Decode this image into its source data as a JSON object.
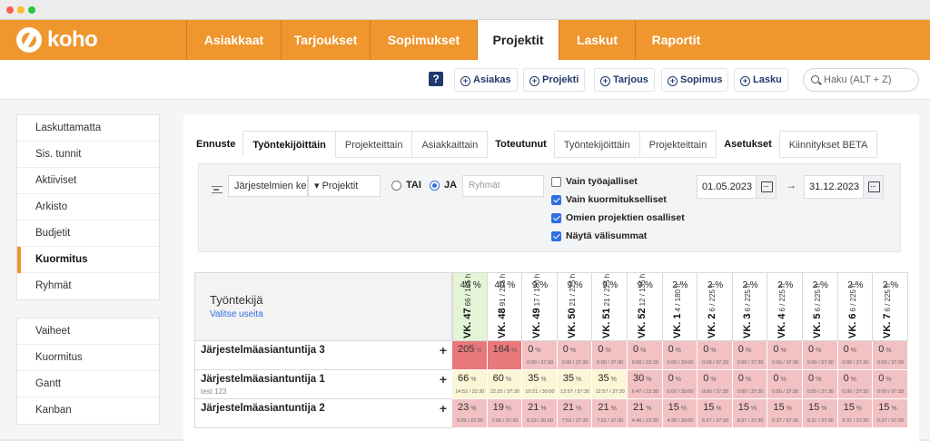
{
  "app": {
    "logo_text": "koho",
    "brand_color": "#f0962e"
  },
  "nav": {
    "tabs": [
      {
        "label": "Asiakkaat"
      },
      {
        "label": "Tarjoukset"
      },
      {
        "label": "Sopimukset"
      },
      {
        "label": "Projektit",
        "active": true
      },
      {
        "label": "Laskut"
      },
      {
        "label": "Raportit"
      }
    ]
  },
  "toolbar": {
    "help_glyph": "?",
    "buttons": [
      {
        "label": "Asiakas"
      },
      {
        "label": "Projekti"
      },
      {
        "label": "Tarjous"
      },
      {
        "label": "Sopimus"
      },
      {
        "label": "Lasku"
      }
    ],
    "search_placeholder": "Haku (ALT + Z)"
  },
  "sidebar": {
    "group1": [
      "Laskuttamatta",
      "Sis. tunnit",
      "Aktiiviset",
      "Arkisto",
      "Budjetit",
      "Kuormitus",
      "Ryhmät"
    ],
    "group1_active": "Kuormitus",
    "group2": [
      "Vaiheet",
      "Kuormitus",
      "Gantt",
      "Kanban"
    ]
  },
  "subtabs": {
    "ennuste_label": "Ennuste",
    "ennuste": [
      "Työntekijöittäin",
      "Projekteittain",
      "Asiakkaittain"
    ],
    "toteutunut_label": "Toteutunut",
    "toteutunut": [
      "Työntekijöittäin",
      "Projekteittain"
    ],
    "asetukset_label": "Asetukset",
    "extra": "Kiinnitykset BETA"
  },
  "filters": {
    "sort_select": "Järjestelmien ke",
    "project_select": "▾ Projektit",
    "or_label": "TAI",
    "and_label": "JA",
    "groups_placeholder": "Ryhmät",
    "checkboxes": [
      {
        "label": "Vain työajalliset",
        "checked": false
      },
      {
        "label": "Vain kuormitukselliset",
        "checked": true
      },
      {
        "label": "Omien projektien osalliset",
        "checked": true
      },
      {
        "label": "Näytä välisummat",
        "checked": true
      }
    ],
    "date_from": "01.05.2023",
    "date_arrow": "→",
    "date_to": "31.12.2023"
  },
  "grid": {
    "employee_header": "Työntekijä",
    "select_many": "Valitse useita",
    "weeks": [
      {
        "pct": "49 %",
        "wk": "VK. 47",
        "hrs": "66 / 135 h"
      },
      {
        "pct": "40 %",
        "wk": "VK. 48",
        "hrs": "91 / 225 h"
      },
      {
        "pct": "9 %",
        "wk": "VK. 49",
        "hrs": "17 / 180 h"
      },
      {
        "pct": "9 %",
        "wk": "VK. 50",
        "hrs": "21 / 225 h"
      },
      {
        "pct": "9 %",
        "wk": "VK. 51",
        "hrs": "21 / 225 h"
      },
      {
        "pct": "9 %",
        "wk": "VK. 52",
        "hrs": "12 / 135 h"
      },
      {
        "pct": "2 %",
        "wk": "VK. 1",
        "hrs": "4 / 180 h"
      },
      {
        "pct": "2 %",
        "wk": "VK. 2",
        "hrs": "6 / 225 h"
      },
      {
        "pct": "2 %",
        "wk": "VK. 3",
        "hrs": "6 / 225 h"
      },
      {
        "pct": "2 %",
        "wk": "VK. 4",
        "hrs": "6 / 225 h"
      },
      {
        "pct": "2 %",
        "wk": "VK. 5",
        "hrs": "6 / 225 h"
      },
      {
        "pct": "2 %",
        "wk": "VK. 6",
        "hrs": "6 / 225 h"
      },
      {
        "pct": "2 %",
        "wk": "VK. 7",
        "hrs": "6 / 225 h"
      }
    ],
    "rows": [
      {
        "name": "Järjestelmäasiantuntija 3",
        "sub": "",
        "cells": [
          {
            "v": "205",
            "t": "",
            "c": "dred"
          },
          {
            "v": "164",
            "t": "",
            "c": "dred"
          },
          {
            "v": "0",
            "t": "0:00 / 37:30",
            "c": "red"
          },
          {
            "v": "0",
            "t": "0:00 / 37:30",
            "c": "red"
          },
          {
            "v": "0",
            "t": "0:00 / 37:30",
            "c": "red"
          },
          {
            "v": "0",
            "t": "0:00 / 22:30",
            "c": "red"
          },
          {
            "v": "0",
            "t": "0:00 / 30:00",
            "c": "red"
          },
          {
            "v": "0",
            "t": "0:00 / 37:30",
            "c": "red"
          },
          {
            "v": "0",
            "t": "0:00 / 37:30",
            "c": "red"
          },
          {
            "v": "0",
            "t": "0:00 / 37:30",
            "c": "red"
          },
          {
            "v": "0",
            "t": "0:00 / 37:30",
            "c": "red"
          },
          {
            "v": "0",
            "t": "0:00 / 37:30",
            "c": "red"
          },
          {
            "v": "0",
            "t": "0:00 / 37:30",
            "c": "red"
          }
        ]
      },
      {
        "name": "Järjestelmäasiantuntija 1",
        "sub": "test 123",
        "cells": [
          {
            "v": "66",
            "t": "14:52 / 22:30",
            "c": "yel"
          },
          {
            "v": "60",
            "t": "22:25 / 37:30",
            "c": "yel"
          },
          {
            "v": "35",
            "t": "10:21 / 30:00",
            "c": "yel"
          },
          {
            "v": "35",
            "t": "12:57 / 37:30",
            "c": "yel"
          },
          {
            "v": "35",
            "t": "12:57 / 37:30",
            "c": "yel"
          },
          {
            "v": "30",
            "t": "6:47 / 22:30",
            "c": "red"
          },
          {
            "v": "0",
            "t": "0:00 / 30:00",
            "c": "red"
          },
          {
            "v": "0",
            "t": "0:00 / 37:30",
            "c": "red"
          },
          {
            "v": "0",
            "t": "0:00 / 37:30",
            "c": "red"
          },
          {
            "v": "0",
            "t": "0:00 / 37:30",
            "c": "red"
          },
          {
            "v": "0",
            "t": "0:00 / 37:30",
            "c": "red"
          },
          {
            "v": "0",
            "t": "0:00 / 37:30",
            "c": "red"
          },
          {
            "v": "0",
            "t": "0:00 / 37:30",
            "c": "red"
          }
        ]
      },
      {
        "name": "Järjestelmäasiantuntija 2",
        "sub": "",
        "cells": [
          {
            "v": "23",
            "t": "5:09 / 22:30",
            "c": "red"
          },
          {
            "v": "19",
            "t": "7:06 / 37:30",
            "c": "red"
          },
          {
            "v": "21",
            "t": "6:33 / 30:00",
            "c": "red"
          },
          {
            "v": "21",
            "t": "7:52 / 37:30",
            "c": "red"
          },
          {
            "v": "21",
            "t": "7:52 / 37:30",
            "c": "red"
          },
          {
            "v": "21",
            "t": "4:46 / 22:30",
            "c": "red"
          },
          {
            "v": "15",
            "t": "4:30 / 30:00",
            "c": "red"
          },
          {
            "v": "15",
            "t": "5:37 / 37:30",
            "c": "red"
          },
          {
            "v": "15",
            "t": "5:37 / 37:30",
            "c": "red"
          },
          {
            "v": "15",
            "t": "5:37 / 37:30",
            "c": "red"
          },
          {
            "v": "15",
            "t": "5:37 / 37:30",
            "c": "red"
          },
          {
            "v": "15",
            "t": "5:37 / 37:30",
            "c": "red"
          },
          {
            "v": "15",
            "t": "5:37 / 37:30",
            "c": "red"
          }
        ]
      }
    ],
    "pct_suffix": "%"
  }
}
